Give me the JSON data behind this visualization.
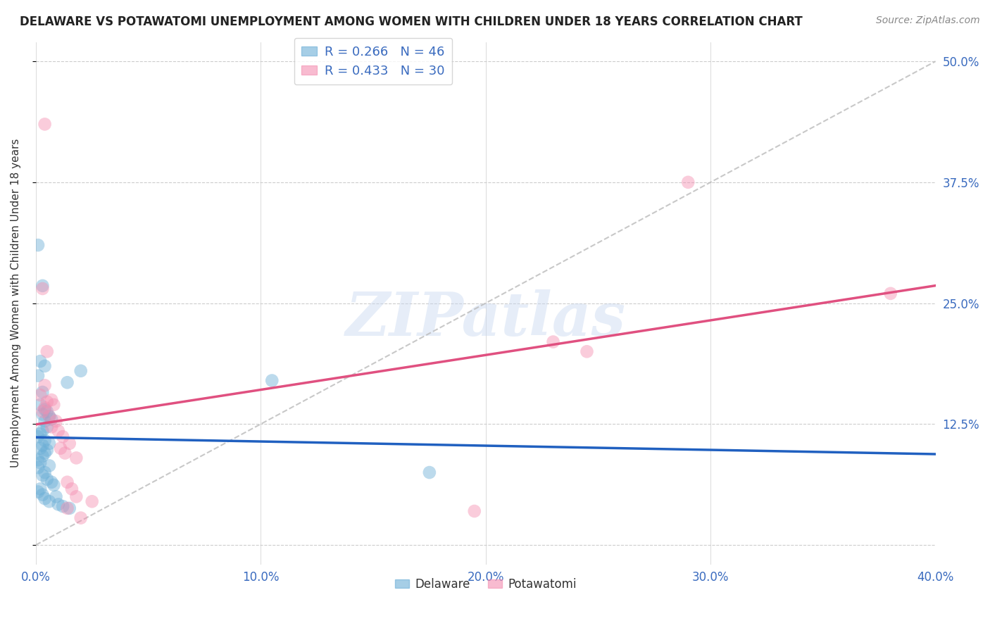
{
  "title": "DELAWARE VS POTAWATOMI UNEMPLOYMENT AMONG WOMEN WITH CHILDREN UNDER 18 YEARS CORRELATION CHART",
  "source": "Source: ZipAtlas.com",
  "ylabel": "Unemployment Among Women with Children Under 18 years",
  "xlim": [
    0.0,
    0.4
  ],
  "ylim": [
    -0.02,
    0.52
  ],
  "yticks": [
    0.0,
    0.125,
    0.25,
    0.375,
    0.5
  ],
  "ytick_labels_left": [
    "",
    "12.5%",
    "25.0%",
    "37.5%",
    "50.0%"
  ],
  "ytick_labels_right": [
    "",
    "12.5%",
    "25.0%",
    "37.5%",
    "50.0%"
  ],
  "xticks": [
    0.0,
    0.1,
    0.2,
    0.3,
    0.4
  ],
  "xtick_labels": [
    "0.0%",
    "10.0%",
    "20.0%",
    "30.0%",
    "40.0%"
  ],
  "delaware_color": "#6baed6",
  "potawatomi_color": "#f48fb1",
  "delaware_line_color": "#2060c0",
  "potawatomi_line_color": "#e05080",
  "dashed_line_color": "#bbbbbb",
  "watermark": "ZIPatlas",
  "delaware_R": 0.266,
  "delaware_N": 46,
  "potawatomi_R": 0.433,
  "potawatomi_N": 30,
  "delaware_points": [
    [
      0.001,
      0.31
    ],
    [
      0.003,
      0.268
    ],
    [
      0.002,
      0.19
    ],
    [
      0.004,
      0.185
    ],
    [
      0.001,
      0.175
    ],
    [
      0.003,
      0.158
    ],
    [
      0.002,
      0.145
    ],
    [
      0.004,
      0.14
    ],
    [
      0.005,
      0.138
    ],
    [
      0.003,
      0.135
    ],
    [
      0.006,
      0.133
    ],
    [
      0.007,
      0.13
    ],
    [
      0.004,
      0.128
    ],
    [
      0.005,
      0.122
    ],
    [
      0.003,
      0.118
    ],
    [
      0.002,
      0.115
    ],
    [
      0.001,
      0.112
    ],
    [
      0.004,
      0.108
    ],
    [
      0.006,
      0.105
    ],
    [
      0.003,
      0.103
    ],
    [
      0.002,
      0.1
    ],
    [
      0.005,
      0.098
    ],
    [
      0.004,
      0.095
    ],
    [
      0.003,
      0.092
    ],
    [
      0.001,
      0.088
    ],
    [
      0.002,
      0.085
    ],
    [
      0.006,
      0.082
    ],
    [
      0.001,
      0.08
    ],
    [
      0.004,
      0.075
    ],
    [
      0.003,
      0.072
    ],
    [
      0.005,
      0.068
    ],
    [
      0.007,
      0.065
    ],
    [
      0.008,
      0.062
    ],
    [
      0.002,
      0.058
    ],
    [
      0.001,
      0.055
    ],
    [
      0.003,
      0.052
    ],
    [
      0.009,
      0.05
    ],
    [
      0.004,
      0.048
    ],
    [
      0.006,
      0.045
    ],
    [
      0.01,
      0.042
    ],
    [
      0.012,
      0.04
    ],
    [
      0.015,
      0.038
    ],
    [
      0.014,
      0.168
    ],
    [
      0.02,
      0.18
    ],
    [
      0.105,
      0.17
    ],
    [
      0.175,
      0.075
    ]
  ],
  "potawatomi_points": [
    [
      0.004,
      0.435
    ],
    [
      0.003,
      0.265
    ],
    [
      0.005,
      0.2
    ],
    [
      0.004,
      0.165
    ],
    [
      0.002,
      0.155
    ],
    [
      0.007,
      0.15
    ],
    [
      0.005,
      0.148
    ],
    [
      0.008,
      0.145
    ],
    [
      0.004,
      0.142
    ],
    [
      0.003,
      0.138
    ],
    [
      0.006,
      0.133
    ],
    [
      0.009,
      0.128
    ],
    [
      0.007,
      0.122
    ],
    [
      0.01,
      0.118
    ],
    [
      0.012,
      0.112
    ],
    [
      0.015,
      0.105
    ],
    [
      0.011,
      0.1
    ],
    [
      0.013,
      0.095
    ],
    [
      0.018,
      0.09
    ],
    [
      0.014,
      0.065
    ],
    [
      0.016,
      0.058
    ],
    [
      0.018,
      0.05
    ],
    [
      0.025,
      0.045
    ],
    [
      0.014,
      0.038
    ],
    [
      0.02,
      0.028
    ],
    [
      0.23,
      0.21
    ],
    [
      0.29,
      0.375
    ],
    [
      0.245,
      0.2
    ],
    [
      0.195,
      0.035
    ],
    [
      0.38,
      0.26
    ]
  ]
}
